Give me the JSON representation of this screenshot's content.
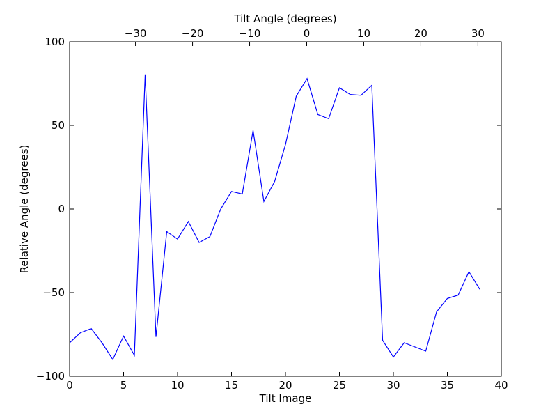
{
  "chart_data": {
    "type": "line",
    "xlabel": "Tilt Image",
    "ylabel": "Relative Angle (degrees)",
    "top_xlabel": "Tilt Angle (degrees)",
    "xlim": [
      0,
      40
    ],
    "ylim": [
      -100,
      100
    ],
    "top_xlim": [
      -41.54,
      34.1
    ],
    "x_ticks": [
      0,
      5,
      10,
      15,
      20,
      25,
      30,
      35,
      40
    ],
    "x_tick_labels": [
      "0",
      "5",
      "10",
      "15",
      "20",
      "25",
      "30",
      "35",
      "40"
    ],
    "y_ticks": [
      -100,
      -50,
      0,
      50,
      100
    ],
    "y_tick_labels": [
      "−100",
      "−50",
      "0",
      "50",
      "100"
    ],
    "top_x_ticks": [
      -30,
      -20,
      -10,
      0,
      10,
      20,
      30
    ],
    "top_x_tick_labels": [
      "−30",
      "−20",
      "−10",
      "0",
      "10",
      "20",
      "30"
    ],
    "grid": false,
    "line_color": "#0000ff",
    "series": [
      {
        "x": [
          0,
          1,
          2,
          3,
          4,
          5,
          6,
          7,
          8,
          9,
          10,
          11,
          12,
          13,
          14,
          15,
          16,
          17,
          18,
          19,
          20,
          21,
          22,
          23,
          24,
          25,
          26,
          27,
          28,
          29,
          30,
          31,
          32,
          33,
          34,
          35,
          36,
          37,
          38
        ],
        "values": [
          -80,
          -74,
          -71.5,
          -80,
          -90,
          -76,
          -87.5,
          80.5,
          -76.5,
          -13.5,
          -18,
          -7.5,
          -20,
          -16.5,
          0,
          10.5,
          9,
          47,
          4.5,
          16.5,
          38.5,
          67.5,
          78,
          56.5,
          54,
          72.5,
          68.5,
          68,
          74,
          -78.5,
          -88.5,
          -80,
          -82.5,
          -85,
          -61.5,
          -53.5,
          -51.5,
          -37.5,
          -48
        ]
      }
    ]
  }
}
